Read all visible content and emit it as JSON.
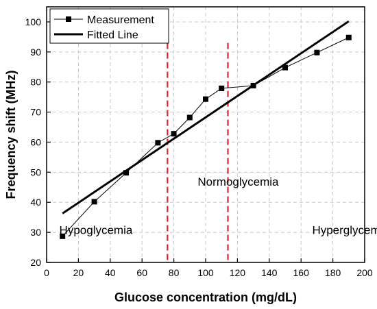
{
  "chart_data": {
    "type": "line",
    "title": "",
    "xlabel": "Glucose concentration (mg/dL)",
    "ylabel": "Frequency shift (MHz)",
    "xlim": [
      0,
      200
    ],
    "ylim": [
      20,
      105
    ],
    "xticks": [
      0,
      20,
      40,
      60,
      80,
      100,
      120,
      140,
      160,
      180,
      200
    ],
    "yticks": [
      20,
      30,
      40,
      50,
      60,
      70,
      80,
      90,
      100
    ],
    "grid": true,
    "legend_position": "top-left",
    "series": [
      {
        "name": "Measurement",
        "style": "line-with-square-markers",
        "color": "#000000",
        "x": [
          10,
          30,
          50,
          70,
          80,
          90,
          100,
          110,
          130,
          150,
          170,
          190
        ],
        "y": [
          28.7,
          40.2,
          49.8,
          59.8,
          62.8,
          68.2,
          74.3,
          77.9,
          78.8,
          84.8,
          89.8,
          94.8
        ]
      },
      {
        "name": "Fitted Line",
        "style": "thick-line",
        "color": "#000000",
        "x": [
          10,
          190
        ],
        "y": [
          36.3,
          100.2
        ]
      }
    ],
    "vertical_lines": [
      {
        "x": 76,
        "color": "#e8222a",
        "style": "dashed"
      },
      {
        "x": 114,
        "color": "#e8222a",
        "style": "dashed"
      }
    ],
    "annotations": [
      {
        "text": "Hypoglycemia",
        "x": 8,
        "y": 29.5
      },
      {
        "text": "Normoglycemia",
        "x": 95,
        "y": 45.5
      },
      {
        "text": "Hyperglycemia",
        "x": 167,
        "y": 29.5
      }
    ]
  }
}
